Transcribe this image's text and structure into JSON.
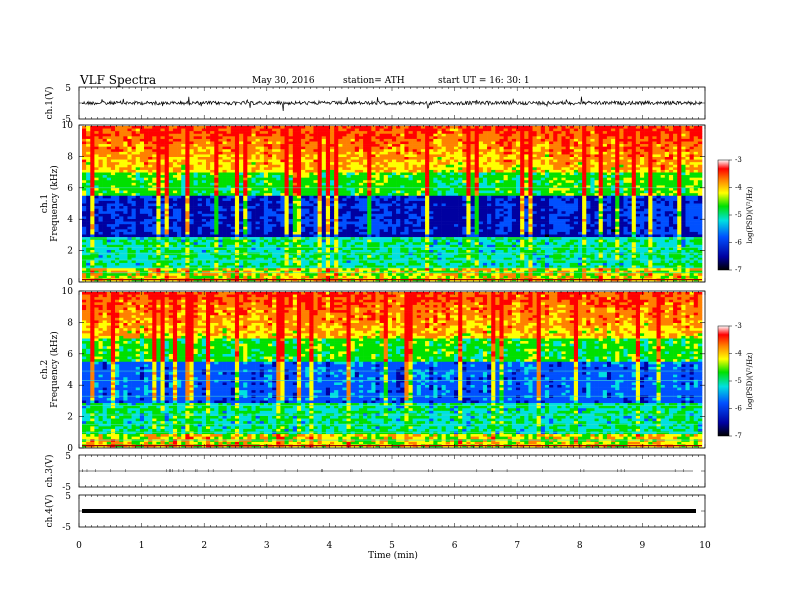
{
  "header": {
    "title": "VLF Spectra",
    "date": "May 30, 2016",
    "station": "station= ATH",
    "start": "start  UT  =    16: 30: 1"
  },
  "colors": {
    "colormap": [
      "#000000",
      "#0000a0",
      "#0050ff",
      "#00e0e0",
      "#00e000",
      "#ffff00",
      "#ff8000",
      "#ff0000",
      "#ffffff"
    ],
    "line": "#000000"
  },
  "chart_data": {
    "type": "heatmap",
    "xlabel": "Time  (min)",
    "xlim": [
      0,
      10
    ],
    "x_ticks": [
      "0",
      "1",
      "2",
      "3",
      "4",
      "5",
      "6",
      "7",
      "8",
      "9",
      "10"
    ],
    "panels": [
      {
        "name": "ch.1",
        "kind": "timeseries",
        "ylabel": "ch.1(V)",
        "y_ticks": [
          "5",
          "-5"
        ],
        "ylim": [
          -5,
          5
        ],
        "level": 0.0
      },
      {
        "name": "ch.1",
        "kind": "spectrogram",
        "ylabel_top": "ch.1",
        "ylabel": "Frequency  (kHz)",
        "y_ticks": [
          "0",
          "2",
          "4",
          "6",
          "8",
          "10"
        ],
        "ylim": [
          0,
          10
        ],
        "colorbar": {
          "label": "log(PSD)(V²/Hz)",
          "ticks": [
            "-3",
            "-4",
            "-5",
            "-6",
            "-7"
          ],
          "range": [
            -7,
            -3
          ]
        }
      },
      {
        "name": "ch.2",
        "kind": "spectrogram",
        "ylabel_top": "ch.2",
        "ylabel": "Frequency  (kHz)",
        "y_ticks": [
          "0",
          "2",
          "4",
          "6",
          "8",
          "10"
        ],
        "ylim": [
          0,
          10
        ],
        "colorbar": {
          "label": "log(PSD)(V²/Hz)",
          "ticks": [
            "-3",
            "-4",
            "-5",
            "-6",
            "-7"
          ],
          "range": [
            -7,
            -3
          ]
        }
      },
      {
        "name": "ch.3",
        "kind": "timeseries",
        "ylabel": "ch.3(V)",
        "y_ticks": [
          "5",
          "-5"
        ],
        "ylim": [
          -5,
          5
        ],
        "level": 0.0
      },
      {
        "name": "ch.4",
        "kind": "timeseries",
        "ylabel": "ch.4(V)",
        "y_ticks": [
          "5",
          "-5"
        ],
        "ylim": [
          -5,
          5
        ],
        "level": 0.0
      }
    ]
  }
}
